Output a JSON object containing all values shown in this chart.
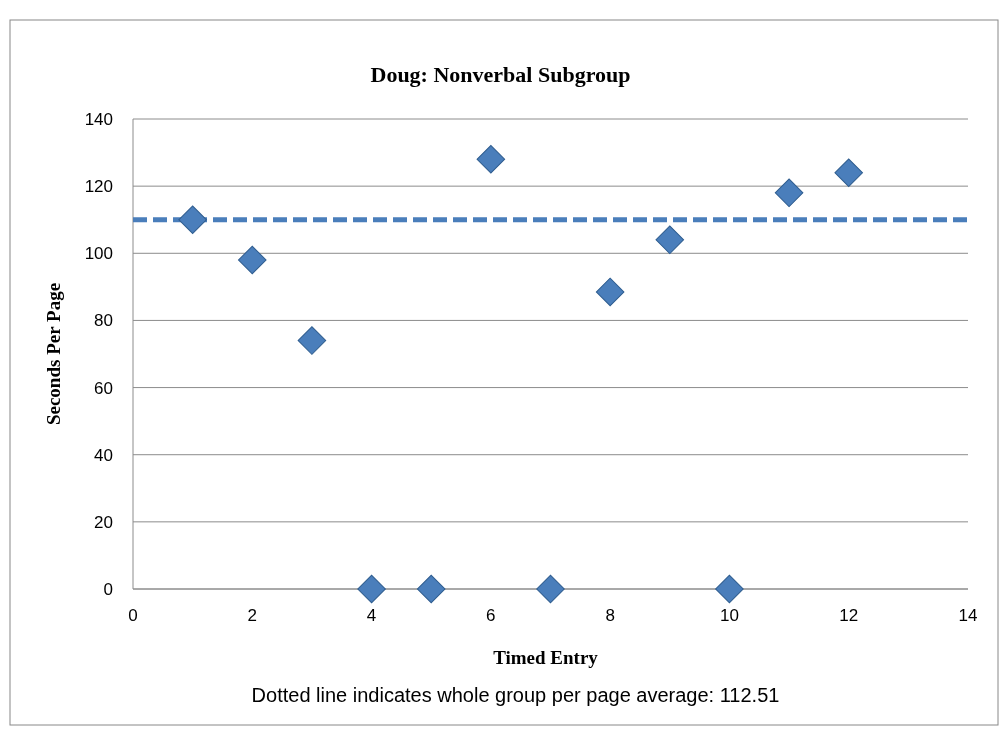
{
  "chart_data": {
    "type": "scatter",
    "title": "Doug: Nonverbal Subgroup",
    "xlabel": "Timed Entry",
    "ylabel": "Seconds Per Page",
    "annotations": [
      "Dotted line indicates whole group per page average: 112.51"
    ],
    "x": [
      1,
      2,
      3,
      4,
      5,
      6,
      7,
      8,
      9,
      10,
      11,
      12
    ],
    "series": [
      {
        "color": "#4a7ebb",
        "values": [
          110,
          98,
          74,
          0,
          0,
          128,
          0,
          88.5,
          104,
          0,
          118,
          124
        ]
      }
    ],
    "xlim": [
      0,
      14
    ],
    "xticks": [
      0,
      2,
      4,
      6,
      8,
      10,
      12,
      14
    ],
    "ylim": [
      0,
      140
    ],
    "yticks": [
      0,
      20,
      40,
      60,
      80,
      100,
      120,
      140
    ],
    "grid": "y",
    "marker": "diamond",
    "ref_lines": [
      {
        "axis": "y",
        "value": 110,
        "color": "#4a7ebb",
        "line_style": "dashed"
      }
    ]
  }
}
